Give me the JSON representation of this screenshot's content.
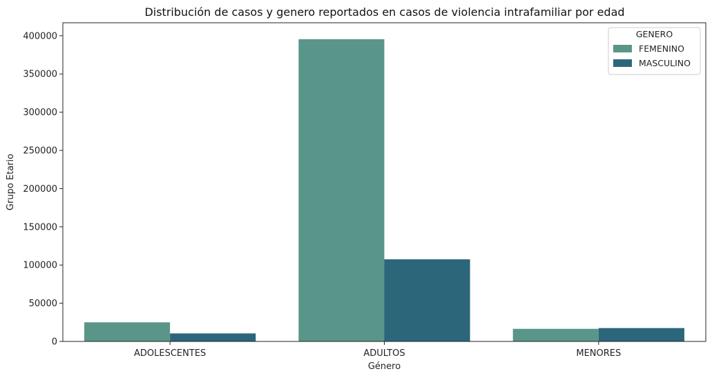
{
  "chart_data": {
    "type": "bar",
    "title": "Distribución de casos y genero reportados en casos de violencia intrafamiliar por edad",
    "xlabel": "Género",
    "ylabel": "Grupo Etario",
    "categories": [
      "ADOLESCENTES",
      "ADULTOS",
      "MENORES"
    ],
    "series": [
      {
        "name": "FEMENINO",
        "color": "#5a9589",
        "values": [
          25000,
          395500,
          16500
        ]
      },
      {
        "name": "MASCULINO",
        "color": "#2c667b",
        "values": [
          10500,
          107500,
          17500
        ]
      }
    ],
    "ylim": [
      0,
      417000
    ],
    "yticks": [
      0,
      50000,
      100000,
      150000,
      200000,
      250000,
      300000,
      350000,
      400000
    ],
    "grid": false,
    "legend": {
      "title": "GENERO",
      "placement": "top-right"
    }
  }
}
